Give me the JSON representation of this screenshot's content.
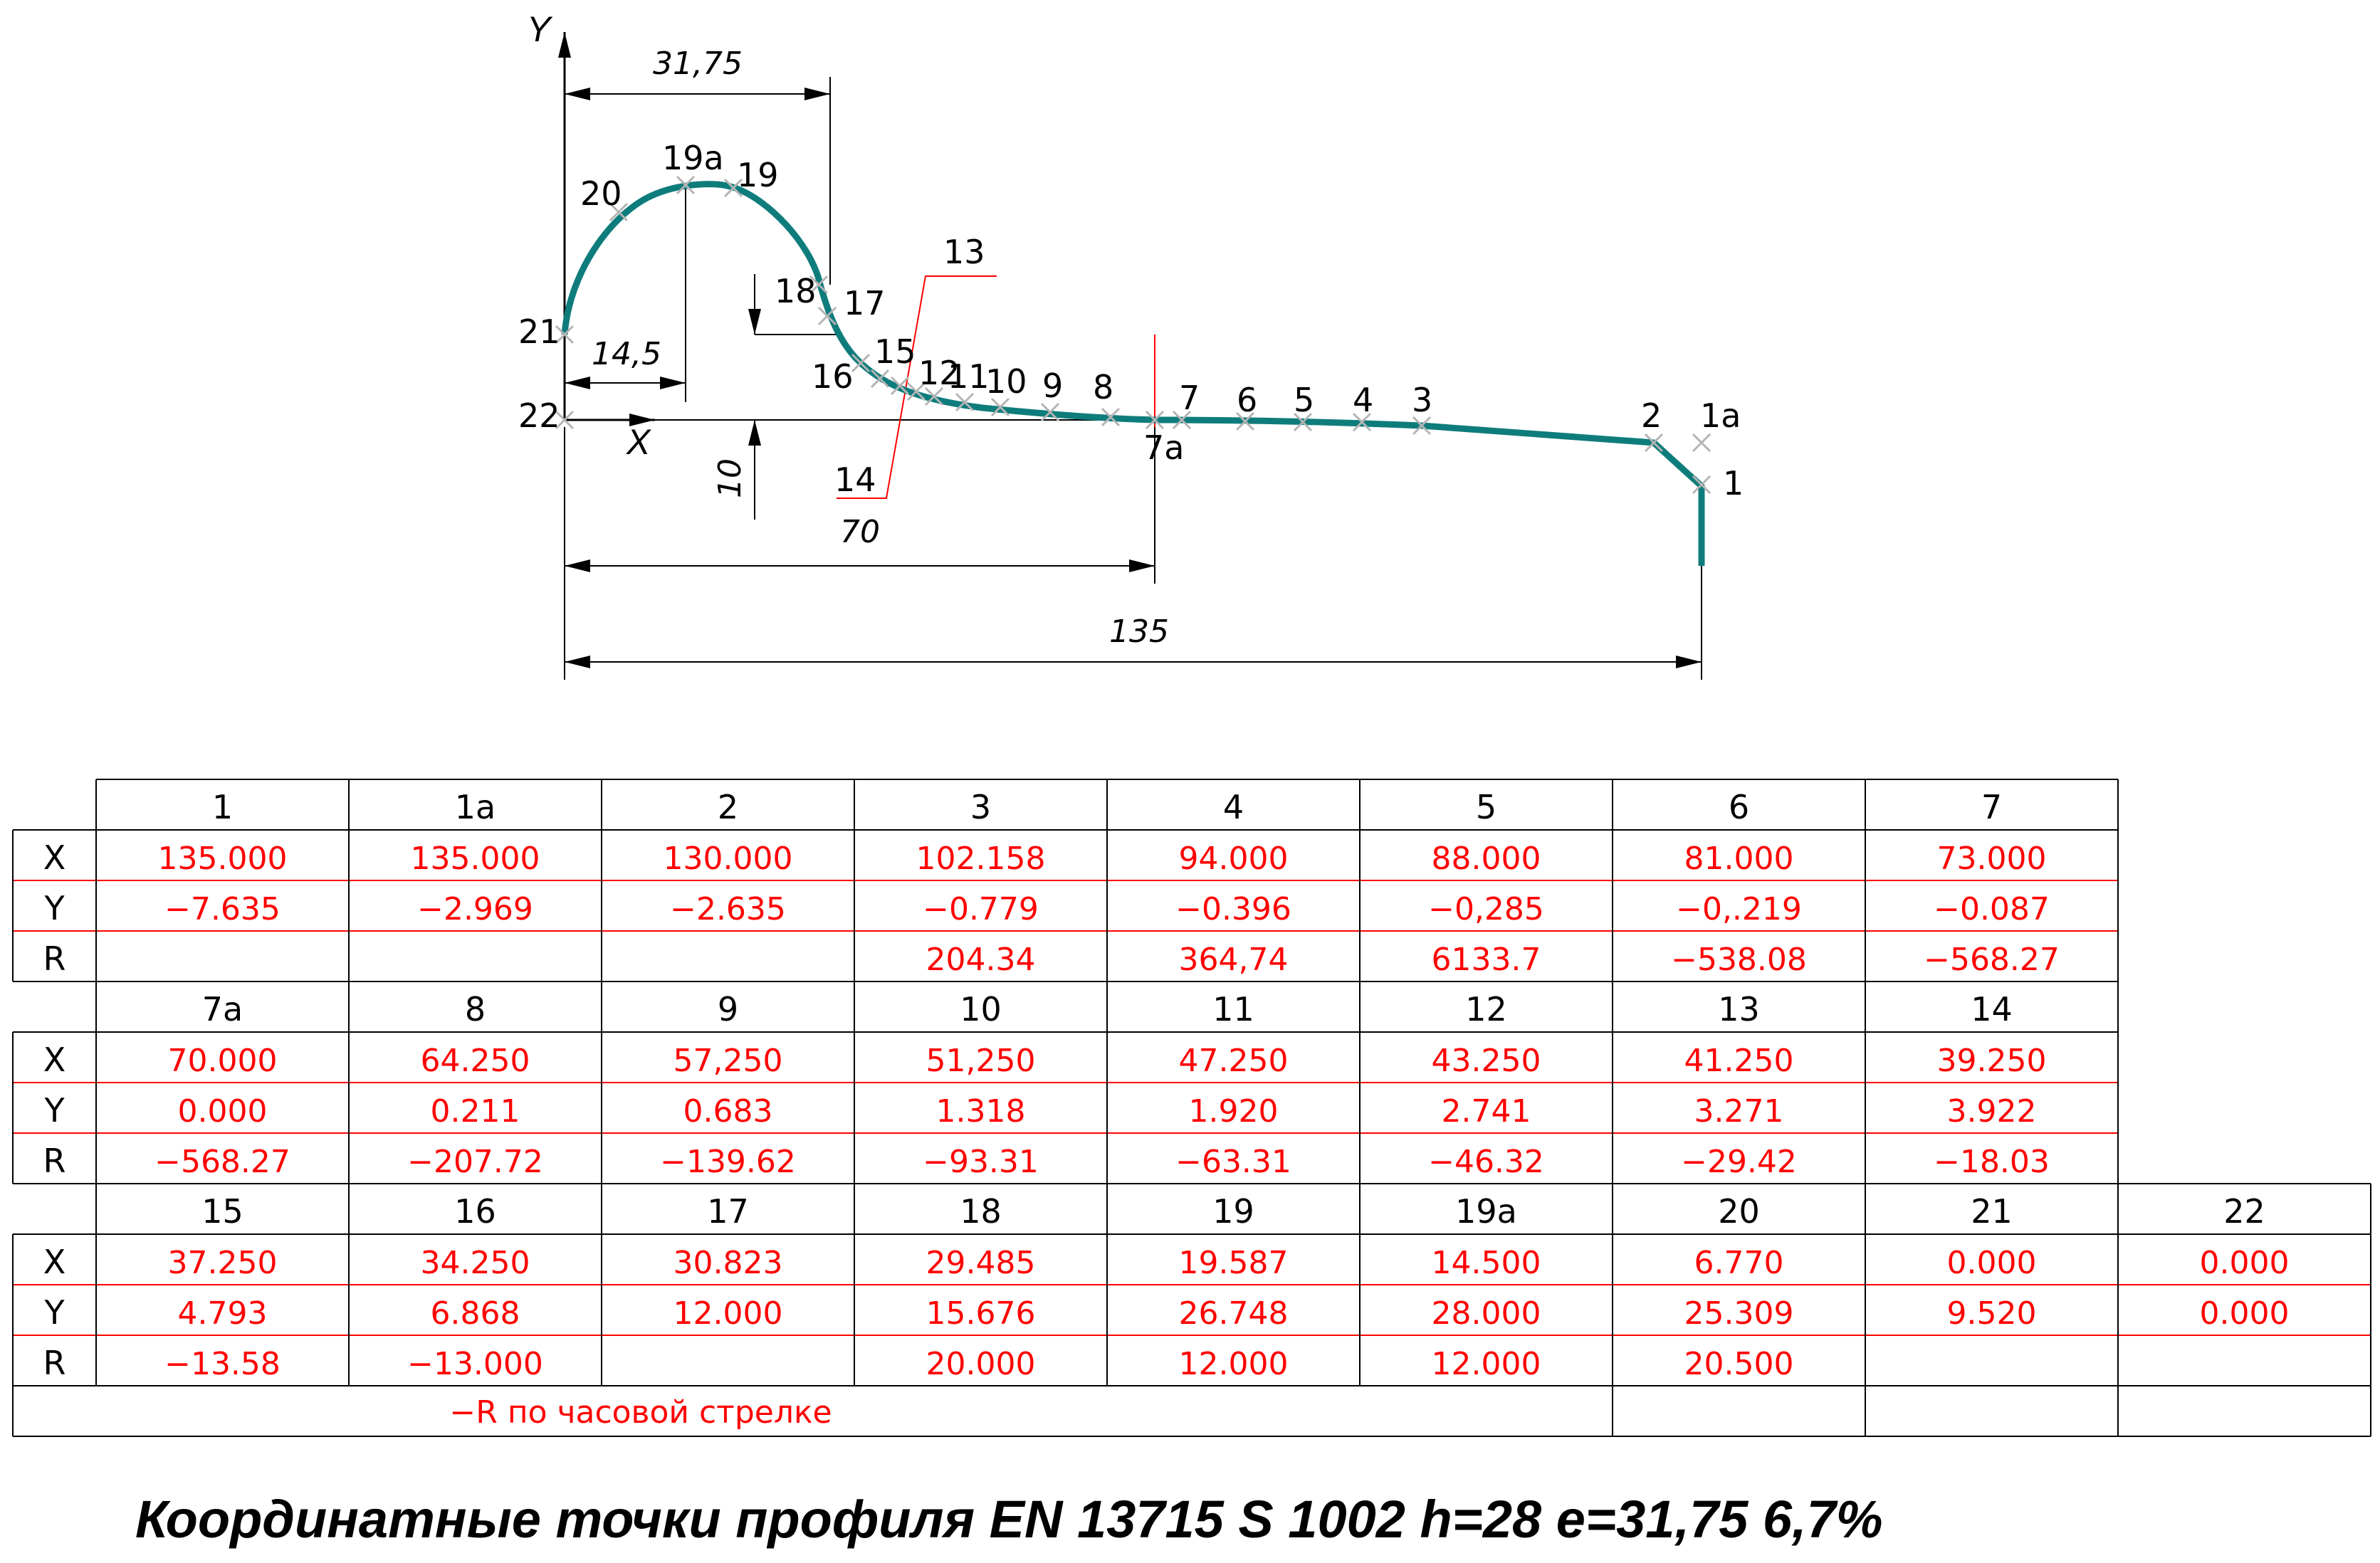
{
  "drawing": {
    "axis_y": "Y",
    "axis_x": "X",
    "dimensions": {
      "top_width": "31,75",
      "radius_offset": "14,5",
      "height_step": "10",
      "half_length": "70",
      "total_length": "135"
    },
    "point_labels": {
      "p1": "1",
      "p1a": "1a",
      "p2": "2",
      "p3": "3",
      "p4": "4",
      "p5": "5",
      "p6": "6",
      "p7": "7",
      "p7a": "7a",
      "p8": "8",
      "p9": "9",
      "p10": "10",
      "p11": "11",
      "p12": "12",
      "p13": "13",
      "p14": "14",
      "p15": "15",
      "p16": "16",
      "p17": "17",
      "p18": "18",
      "p19": "19",
      "p19a": "19a",
      "p20": "20",
      "p21": "21",
      "p22": "22"
    },
    "colors": {
      "profile_line": "#0f7c7c",
      "dimension_line": "#000000",
      "red_markings": "#ff0000",
      "point_markers": "#b4b4b4"
    }
  },
  "table": {
    "row_labels": {
      "x": "X",
      "y": "Y",
      "r": "R"
    },
    "block1": {
      "headers": [
        "1",
        "1a",
        "2",
        "3",
        "4",
        "5",
        "6",
        "7"
      ],
      "x": [
        "135.000",
        "135.000",
        "130.000",
        "102.158",
        "94.000",
        "88.000",
        "81.000",
        "73.000"
      ],
      "y": [
        "−7.635",
        "−2.969",
        "−2.635",
        "−0.779",
        "−0.396",
        "−0,285",
        "−0,.219",
        "−0.087"
      ],
      "r": [
        "",
        "",
        "",
        "204.34",
        "364,74",
        "6133.7",
        "−538.08",
        "−568.27"
      ]
    },
    "block2": {
      "headers": [
        "7a",
        "8",
        "9",
        "10",
        "11",
        "12",
        "13",
        "14"
      ],
      "x": [
        "70.000",
        "64.250",
        "57,250",
        "51,250",
        "47.250",
        "43.250",
        "41.250",
        "39.250"
      ],
      "y": [
        "0.000",
        "0.211",
        "0.683",
        "1.318",
        "1.920",
        "2.741",
        "3.271",
        "3.922"
      ],
      "r": [
        "−568.27",
        "−207.72",
        "−139.62",
        "−93.31",
        "−63.31",
        "−46.32",
        "−29.42",
        "−18.03"
      ]
    },
    "block3": {
      "headers": [
        "15",
        "16",
        "17",
        "18",
        "19",
        "19a",
        "20",
        "21",
        "22"
      ],
      "x": [
        "37.250",
        "34.250",
        "30.823",
        "29.485",
        "19.587",
        "14.500",
        "6.770",
        "0.000",
        "0.000"
      ],
      "y": [
        "4.793",
        "6.868",
        "12.000",
        "15.676",
        "26.748",
        "28.000",
        "25.309",
        "9.520",
        "0.000"
      ],
      "r": [
        "−13.58",
        "−13.000",
        "",
        "20.000",
        "12.000",
        "12.000",
        "20.500",
        "",
        ""
      ]
    },
    "note": "−R по часовой стрелке",
    "colors": {
      "grid": "#000000",
      "red_rule": "#ff0000",
      "values": "#ff0000"
    }
  },
  "title": "Координатные точки профиля EN 13715 S 1002 h=28 e=31,75  6,7%"
}
